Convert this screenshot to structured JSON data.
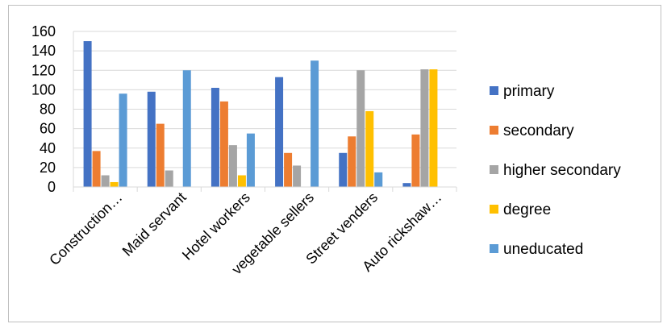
{
  "chart_data": {
    "type": "bar",
    "title": "",
    "xlabel": "",
    "ylabel": "",
    "ylim": [
      0,
      160
    ],
    "yticks": [
      0,
      20,
      40,
      60,
      80,
      100,
      120,
      140,
      160
    ],
    "grid": true,
    "legend_position": "right",
    "categories": [
      "Construction…",
      "Maid servant",
      "Hotel workers",
      "vegetable sellers",
      "Street  venders",
      "Auto rickshaw…"
    ],
    "series": [
      {
        "name": "primary",
        "color": "#4472c4",
        "values": [
          150,
          98,
          102,
          113,
          35,
          4
        ]
      },
      {
        "name": "secondary",
        "color": "#ed7d31",
        "values": [
          37,
          65,
          88,
          35,
          52,
          54
        ]
      },
      {
        "name": "higher secondary",
        "color": "#a5a5a5",
        "values": [
          12,
          17,
          43,
          22,
          120,
          121
        ]
      },
      {
        "name": "degree",
        "color": "#ffc000",
        "values": [
          5,
          0,
          12,
          0,
          78,
          121
        ]
      },
      {
        "name": "uneducated",
        "color": "#5b9bd5",
        "values": [
          96,
          120,
          55,
          130,
          15,
          0
        ]
      }
    ]
  }
}
